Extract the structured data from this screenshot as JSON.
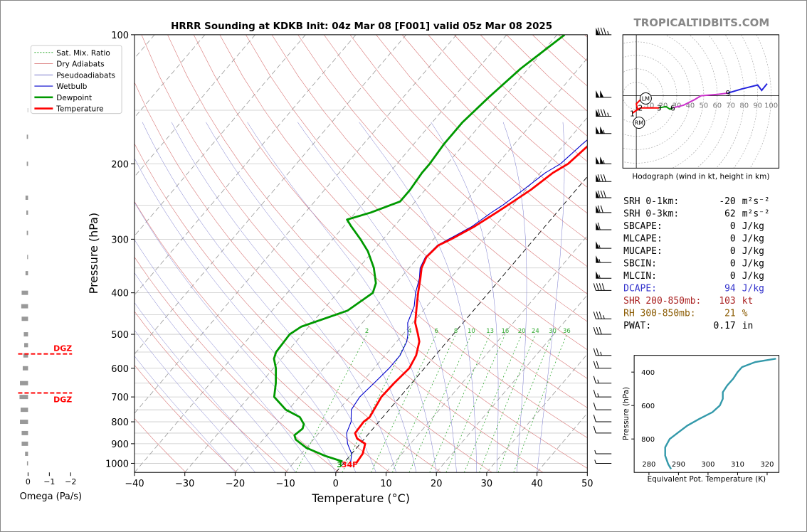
{
  "title": "HRRR Sounding at KDKB Init: 04z Mar 08 [F001] valid 05z Mar 08 2025",
  "brand": "TROPICALTIDBITS.COM",
  "colors": {
    "temperature": "#ff0000",
    "dewpoint": "#009900",
    "wetbulb": "#0000cc",
    "dry": "#d97777",
    "moist": "#555555",
    "mix": "#33aa33",
    "theta_e": "#3399aa"
  },
  "chart_data": [
    {
      "type": "line",
      "name": "skewt",
      "title": "HRRR Sounding at KDKB Init: 04z Mar 08 [F001] valid 05z Mar 08 2025",
      "xlabel": "Temperature (°C)",
      "ylabel": "Pressure (hPa)",
      "xlim": [
        -40,
        50
      ],
      "ylim": [
        1050,
        100
      ],
      "yscale": "log",
      "x_ticks": [
        "−40",
        "−30",
        "−20",
        "−10",
        "0",
        "10",
        "20",
        "30",
        "40",
        "50"
      ],
      "y_ticks": [
        "100",
        "200",
        "300",
        "400",
        "500",
        "600",
        "700",
        "800",
        "900",
        "1000"
      ],
      "legend_position": "top-left",
      "legend": [
        "Sat. Mix. Ratio",
        "Dry Adiabats",
        "Pseudoadiabats",
        "Wetbulb",
        "Dewpoint",
        "Temperature"
      ],
      "mixing_ratio_labels": [
        "2",
        "4",
        "6",
        "8",
        "10",
        "13",
        "16",
        "20",
        "24",
        "30",
        "36"
      ],
      "surface_temp_label": "34F",
      "surface_dew_label": "3",
      "series": [
        {
          "name": "Temperature",
          "points": [
            [
              1000,
              2.5
            ],
            [
              950,
              2.2
            ],
            [
              900,
              1.0
            ],
            [
              875,
              -1.5
            ],
            [
              850,
              -2.8
            ],
            [
              800,
              -3.0
            ],
            [
              780,
              -2.6
            ],
            [
              750,
              -3.0
            ],
            [
              700,
              -3.7
            ],
            [
              650,
              -3.5
            ],
            [
              600,
              -3.0
            ],
            [
              560,
              -3.8
            ],
            [
              520,
              -5.5
            ],
            [
              500,
              -7.0
            ],
            [
              470,
              -9.5
            ],
            [
              430,
              -12.0
            ],
            [
              400,
              -14.0
            ],
            [
              370,
              -16.0
            ],
            [
              350,
              -17.5
            ],
            [
              330,
              -18.4
            ],
            [
              310,
              -18.0
            ],
            [
              300,
              -16.5
            ],
            [
              280,
              -14.0
            ],
            [
              260,
              -12.0
            ],
            [
              250,
              -11.0
            ],
            [
              230,
              -9.0
            ],
            [
              210,
              -7.5
            ],
            [
              200,
              -6.0
            ],
            [
              180,
              -5.0
            ],
            [
              160,
              -4.0
            ],
            [
              140,
              -3.0
            ],
            [
              120,
              -2.0
            ],
            [
              115,
              -1.5
            ],
            [
              100,
              -2.0
            ]
          ]
        },
        {
          "name": "Dewpoint",
          "points": [
            [
              990,
              -0.5
            ],
            [
              960,
              -5.0
            ],
            [
              920,
              -10.0
            ],
            [
              880,
              -13.5
            ],
            [
              860,
              -14.5
            ],
            [
              830,
              -14.0
            ],
            [
              810,
              -14.5
            ],
            [
              780,
              -16.5
            ],
            [
              750,
              -20.5
            ],
            [
              700,
              -25.0
            ],
            [
              650,
              -27.0
            ],
            [
              600,
              -29.5
            ],
            [
              570,
              -31.5
            ],
            [
              550,
              -32.2
            ],
            [
              500,
              -32.5
            ],
            [
              480,
              -31.5
            ],
            [
              440,
              -25.0
            ],
            [
              400,
              -23.0
            ],
            [
              380,
              -24.0
            ],
            [
              350,
              -27.0
            ],
            [
              320,
              -31.0
            ],
            [
              300,
              -34.5
            ],
            [
              280,
              -38.5
            ],
            [
              270,
              -40.5
            ],
            [
              260,
              -37.0
            ],
            [
              245,
              -33.0
            ],
            [
              230,
              -33.0
            ],
            [
              210,
              -33.5
            ],
            [
              200,
              -33.5
            ],
            [
              180,
              -34.0
            ],
            [
              160,
              -34.0
            ],
            [
              140,
              -33.0
            ],
            [
              120,
              -31.5
            ],
            [
              100,
              -28.5
            ]
          ]
        },
        {
          "name": "Wetbulb",
          "points": [
            [
              1000,
              1.4
            ],
            [
              950,
              0.0
            ],
            [
              900,
              -2.5
            ],
            [
              850,
              -4.5
            ],
            [
              800,
              -5.5
            ],
            [
              750,
              -7.5
            ],
            [
              700,
              -8.0
            ],
            [
              650,
              -7.5
            ],
            [
              600,
              -7.0
            ],
            [
              560,
              -7.0
            ],
            [
              520,
              -8.0
            ],
            [
              500,
              -9.0
            ],
            [
              470,
              -11.0
            ],
            [
              430,
              -12.5
            ],
            [
              400,
              -14.5
            ],
            [
              370,
              -16.2
            ],
            [
              350,
              -17.8
            ],
            [
              330,
              -18.6
            ],
            [
              310,
              -18.2
            ],
            [
              300,
              -17.0
            ],
            [
              280,
              -14.5
            ],
            [
              260,
              -13.0
            ],
            [
              250,
              -12.0
            ],
            [
              230,
              -10.5
            ],
            [
              210,
              -9.0
            ],
            [
              200,
              -7.5
            ],
            [
              180,
              -6.5
            ],
            [
              160,
              -5.0
            ],
            [
              140,
              -4.0
            ],
            [
              120,
              -2.5
            ],
            [
              115,
              -2.0
            ],
            [
              100,
              -2.5
            ]
          ]
        }
      ]
    },
    {
      "type": "line",
      "name": "hodograph",
      "xlabel": "Hodograph (wind in kt, height in km)",
      "ring_labels": [
        "10",
        "20",
        "30",
        "40",
        "50",
        "60",
        "70",
        "80",
        "90",
        "100"
      ],
      "height_labels": [
        {
          "km": "1",
          "u": -3,
          "v": -13
        },
        {
          "km": "2",
          "u": 3,
          "v": -9
        },
        {
          "km": "3",
          "u": 17,
          "v": -9
        },
        {
          "km": "6",
          "u": 27,
          "v": -9
        },
        {
          "km": "9",
          "u": 68,
          "v": 2
        }
      ],
      "markers": [
        {
          "label": "LM",
          "u": 7,
          "v": -2
        },
        {
          "label": "RM",
          "u": 2,
          "v": -20
        }
      ],
      "segments": [
        {
          "color": "#ff0000",
          "points": [
            [
              3,
              -3
            ],
            [
              0,
              -6
            ],
            [
              1,
              -10
            ],
            [
              -3,
              -13
            ],
            [
              3,
              -9
            ],
            [
              17,
              -9
            ]
          ]
        },
        {
          "color": "#009900",
          "points": [
            [
              17,
              -9
            ],
            [
              22,
              -8
            ],
            [
              25,
              -10
            ],
            [
              27,
              -9
            ]
          ]
        },
        {
          "color": "#cc33cc",
          "points": [
            [
              27,
              -9
            ],
            [
              35,
              -7
            ],
            [
              43,
              -3
            ],
            [
              48,
              0
            ],
            [
              60,
              1
            ],
            [
              68,
              2
            ]
          ]
        },
        {
          "color": "#2222dd",
          "points": [
            [
              68,
              2
            ],
            [
              78,
              5
            ],
            [
              90,
              8
            ],
            [
              93,
              4
            ],
            [
              97,
              9
            ]
          ]
        }
      ]
    },
    {
      "type": "line",
      "name": "theta_e",
      "xlabel": "Equivalent Pot. Temperature (K)",
      "ylabel": "Pressure (hPa)",
      "xlim": [
        275,
        324
      ],
      "ylim": [
        1000,
        300
      ],
      "x_ticks": [
        "280",
        "290",
        "300",
        "310",
        "320"
      ],
      "y_ticks": [
        "400",
        "600",
        "800"
      ],
      "values": [
        [
          980,
          287.5
        ],
        [
          950,
          286.5
        ],
        [
          900,
          285.5
        ],
        [
          850,
          285.5
        ],
        [
          800,
          287
        ],
        [
          760,
          290
        ],
        [
          720,
          293
        ],
        [
          680,
          297
        ],
        [
          640,
          301.5
        ],
        [
          600,
          304
        ],
        [
          560,
          305
        ],
        [
          520,
          305
        ],
        [
          480,
          306.5
        ],
        [
          440,
          308.5
        ],
        [
          400,
          310
        ],
        [
          370,
          311.5
        ],
        [
          340,
          316
        ],
        [
          320,
          323
        ]
      ]
    },
    {
      "type": "bar",
      "name": "omega",
      "xlabel": "Omega (Pa/s)",
      "x_ticks": [
        "0",
        "−1",
        "−2"
      ],
      "dgz_label": "DGZ",
      "values": [
        [
          150,
          0.02
        ],
        [
          173,
          0.06
        ],
        [
          200,
          0.06
        ],
        [
          240,
          0.12
        ],
        [
          260,
          0.08
        ],
        [
          290,
          0.06
        ],
        [
          330,
          0.04
        ],
        [
          360,
          0.12
        ],
        [
          400,
          0.3
        ],
        [
          430,
          0.32
        ],
        [
          460,
          0.3
        ],
        [
          500,
          0.2
        ],
        [
          530,
          0.18
        ],
        [
          560,
          0.22
        ],
        [
          600,
          0.25
        ],
        [
          650,
          0.38
        ],
        [
          700,
          0.4
        ],
        [
          750,
          0.35
        ],
        [
          800,
          0.38
        ],
        [
          850,
          0.3
        ],
        [
          900,
          0.3
        ],
        [
          950,
          0.14
        ],
        [
          1000,
          0.05
        ]
      ]
    }
  ],
  "stats": [
    {
      "label": "SRH 0-1km:",
      "value": "-20",
      "unit": "m²s⁻²",
      "color": "#000000"
    },
    {
      "label": "SRH 0-3km:",
      "value": "62",
      "unit": "m²s⁻²",
      "color": "#000000"
    },
    {
      "label": "SBCAPE:",
      "value": "0",
      "unit": "J/kg",
      "color": "#000000"
    },
    {
      "label": "MLCAPE:",
      "value": "0",
      "unit": "J/kg",
      "color": "#000000"
    },
    {
      "label": "MUCAPE:",
      "value": "0",
      "unit": "J/kg",
      "color": "#000000"
    },
    {
      "label": "SBCIN:",
      "value": "0",
      "unit": "J/kg",
      "color": "#000000"
    },
    {
      "label": "MLCIN:",
      "value": "0",
      "unit": "J/kg",
      "color": "#000000"
    },
    {
      "label": "DCAPE:",
      "value": "94",
      "unit": "J/kg",
      "color": "#3333cc"
    },
    {
      "label": "SHR 200-850mb:",
      "value": "103",
      "unit": "kt",
      "color": "#aa2222"
    },
    {
      "label": "RH 300-850mb:",
      "value": "21",
      "unit": "%",
      "color": "#8a5a00"
    },
    {
      "label": "PWAT:",
      "value": "0.17",
      "unit": "in",
      "color": "#000000"
    }
  ],
  "wind_barbs": [
    {
      "p": 100,
      "kt": 85
    },
    {
      "p": 140,
      "kt": 100
    },
    {
      "p": 155,
      "kt": 85
    },
    {
      "p": 170,
      "kt": 105
    },
    {
      "p": 200,
      "kt": 105
    },
    {
      "p": 220,
      "kt": 80
    },
    {
      "p": 240,
      "kt": 80
    },
    {
      "p": 260,
      "kt": 70
    },
    {
      "p": 285,
      "kt": 60
    },
    {
      "p": 315,
      "kt": 55
    },
    {
      "p": 340,
      "kt": 55
    },
    {
      "p": 370,
      "kt": 55
    },
    {
      "p": 395,
      "kt": 40
    },
    {
      "p": 460,
      "kt": 35
    },
    {
      "p": 500,
      "kt": 30
    },
    {
      "p": 560,
      "kt": 25
    },
    {
      "p": 600,
      "kt": 20
    },
    {
      "p": 650,
      "kt": 15
    },
    {
      "p": 700,
      "kt": 15
    },
    {
      "p": 750,
      "kt": 10
    },
    {
      "p": 800,
      "kt": 10
    },
    {
      "p": 850,
      "kt": 10
    },
    {
      "p": 950,
      "kt": 5
    },
    {
      "p": 1000,
      "kt": 5
    }
  ]
}
